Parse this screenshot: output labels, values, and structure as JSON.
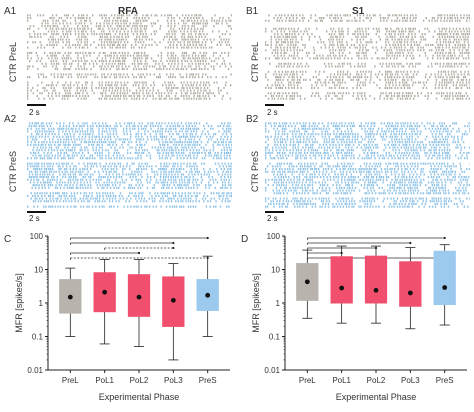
{
  "column_titles": {
    "left": "RFA",
    "right": "S1"
  },
  "raster_panels": [
    {
      "letter": "A1",
      "ylabel": "CTR PreL",
      "scalebar": "2 s",
      "color": "#b3aea5"
    },
    {
      "letter": "B1",
      "ylabel": "CTR PreL",
      "scalebar": "2 s",
      "color": "#b3aea5"
    },
    {
      "letter": "A2",
      "ylabel": "CTR PreS",
      "scalebar": "2 s",
      "color": "#8ec2e6"
    },
    {
      "letter": "B2",
      "ylabel": "CTR PreS",
      "scalebar": "2 s",
      "color": "#8ec2e6"
    }
  ],
  "chart_data": [
    {
      "letter": "C",
      "type": "box",
      "xlabel": "Experimental Phase",
      "ylabel": "MFR [spikes/s]",
      "yscale": "log",
      "ylim": [
        0.01,
        100
      ],
      "yticks": [
        "0.01",
        "0.1",
        "1",
        "10",
        "100"
      ],
      "categories": [
        "PreL",
        "PoL1",
        "PoL2",
        "PoL3",
        "PreS"
      ],
      "colors": [
        "#b8b3ad",
        "#f0506e",
        "#f0506e",
        "#f0506e",
        "#9cc9ee"
      ],
      "boxes": [
        {
          "whisker_low": 0.1,
          "q1": 0.5,
          "median": 1.0,
          "q3": 5.0,
          "whisker_high": 11,
          "mean": 1.5
        },
        {
          "whisker_low": 0.06,
          "q1": 0.55,
          "median": 1.5,
          "q3": 8.0,
          "whisker_high": 20,
          "mean": 2.1
        },
        {
          "whisker_low": 0.05,
          "q1": 0.4,
          "median": 1.3,
          "q3": 7.0,
          "whisker_high": 20,
          "mean": 1.5
        },
        {
          "whisker_low": 0.02,
          "q1": 0.2,
          "median": 1.0,
          "q3": 6.0,
          "whisker_high": 15,
          "mean": 1.2
        },
        {
          "whisker_low": 0.1,
          "q1": 0.6,
          "median": 1.2,
          "q3": 5.0,
          "whisker_high": 25,
          "mean": 1.7
        }
      ]
    },
    {
      "letter": "D",
      "type": "box",
      "xlabel": "Experimental Phase",
      "ylabel": "MFR [spikes/s]",
      "yscale": "log",
      "ylim": [
        0.01,
        100
      ],
      "yticks": [
        "0.01",
        "0.1",
        "1",
        "10",
        "100"
      ],
      "categories": [
        "PreL",
        "PoL1",
        "PoL2",
        "PoL3",
        "PreS"
      ],
      "colors": [
        "#b8b3ad",
        "#f0506e",
        "#f0506e",
        "#f0506e",
        "#9cc9ee"
      ],
      "boxes": [
        {
          "whisker_low": 0.35,
          "q1": 1.2,
          "median": 2.5,
          "q3": 15,
          "whisker_high": 38,
          "mean": 4.3
        },
        {
          "whisker_low": 0.25,
          "q1": 1.0,
          "median": 2.2,
          "q3": 24,
          "whisker_high": 50,
          "mean": 2.8
        },
        {
          "whisker_low": 0.25,
          "q1": 1.0,
          "median": 2.0,
          "q3": 25,
          "whisker_high": 50,
          "mean": 2.4
        },
        {
          "whisker_low": 0.17,
          "q1": 0.8,
          "median": 1.8,
          "q3": 17,
          "whisker_high": 45,
          "mean": 2.0
        },
        {
          "whisker_low": 0.22,
          "q1": 0.9,
          "median": 2.0,
          "q3": 35,
          "whisker_high": 55,
          "mean": 2.9
        }
      ]
    }
  ]
}
